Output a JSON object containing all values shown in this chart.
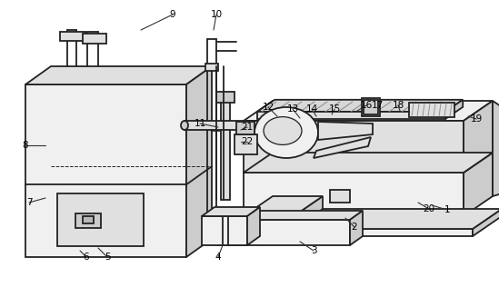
{
  "background_color": "#ffffff",
  "line_color": "#222222",
  "line_width": 1.3,
  "face_light": "#f0f0f0",
  "face_mid": "#e0e0e0",
  "face_dark": "#cccccc",
  "face_darker": "#b8b8b8"
}
